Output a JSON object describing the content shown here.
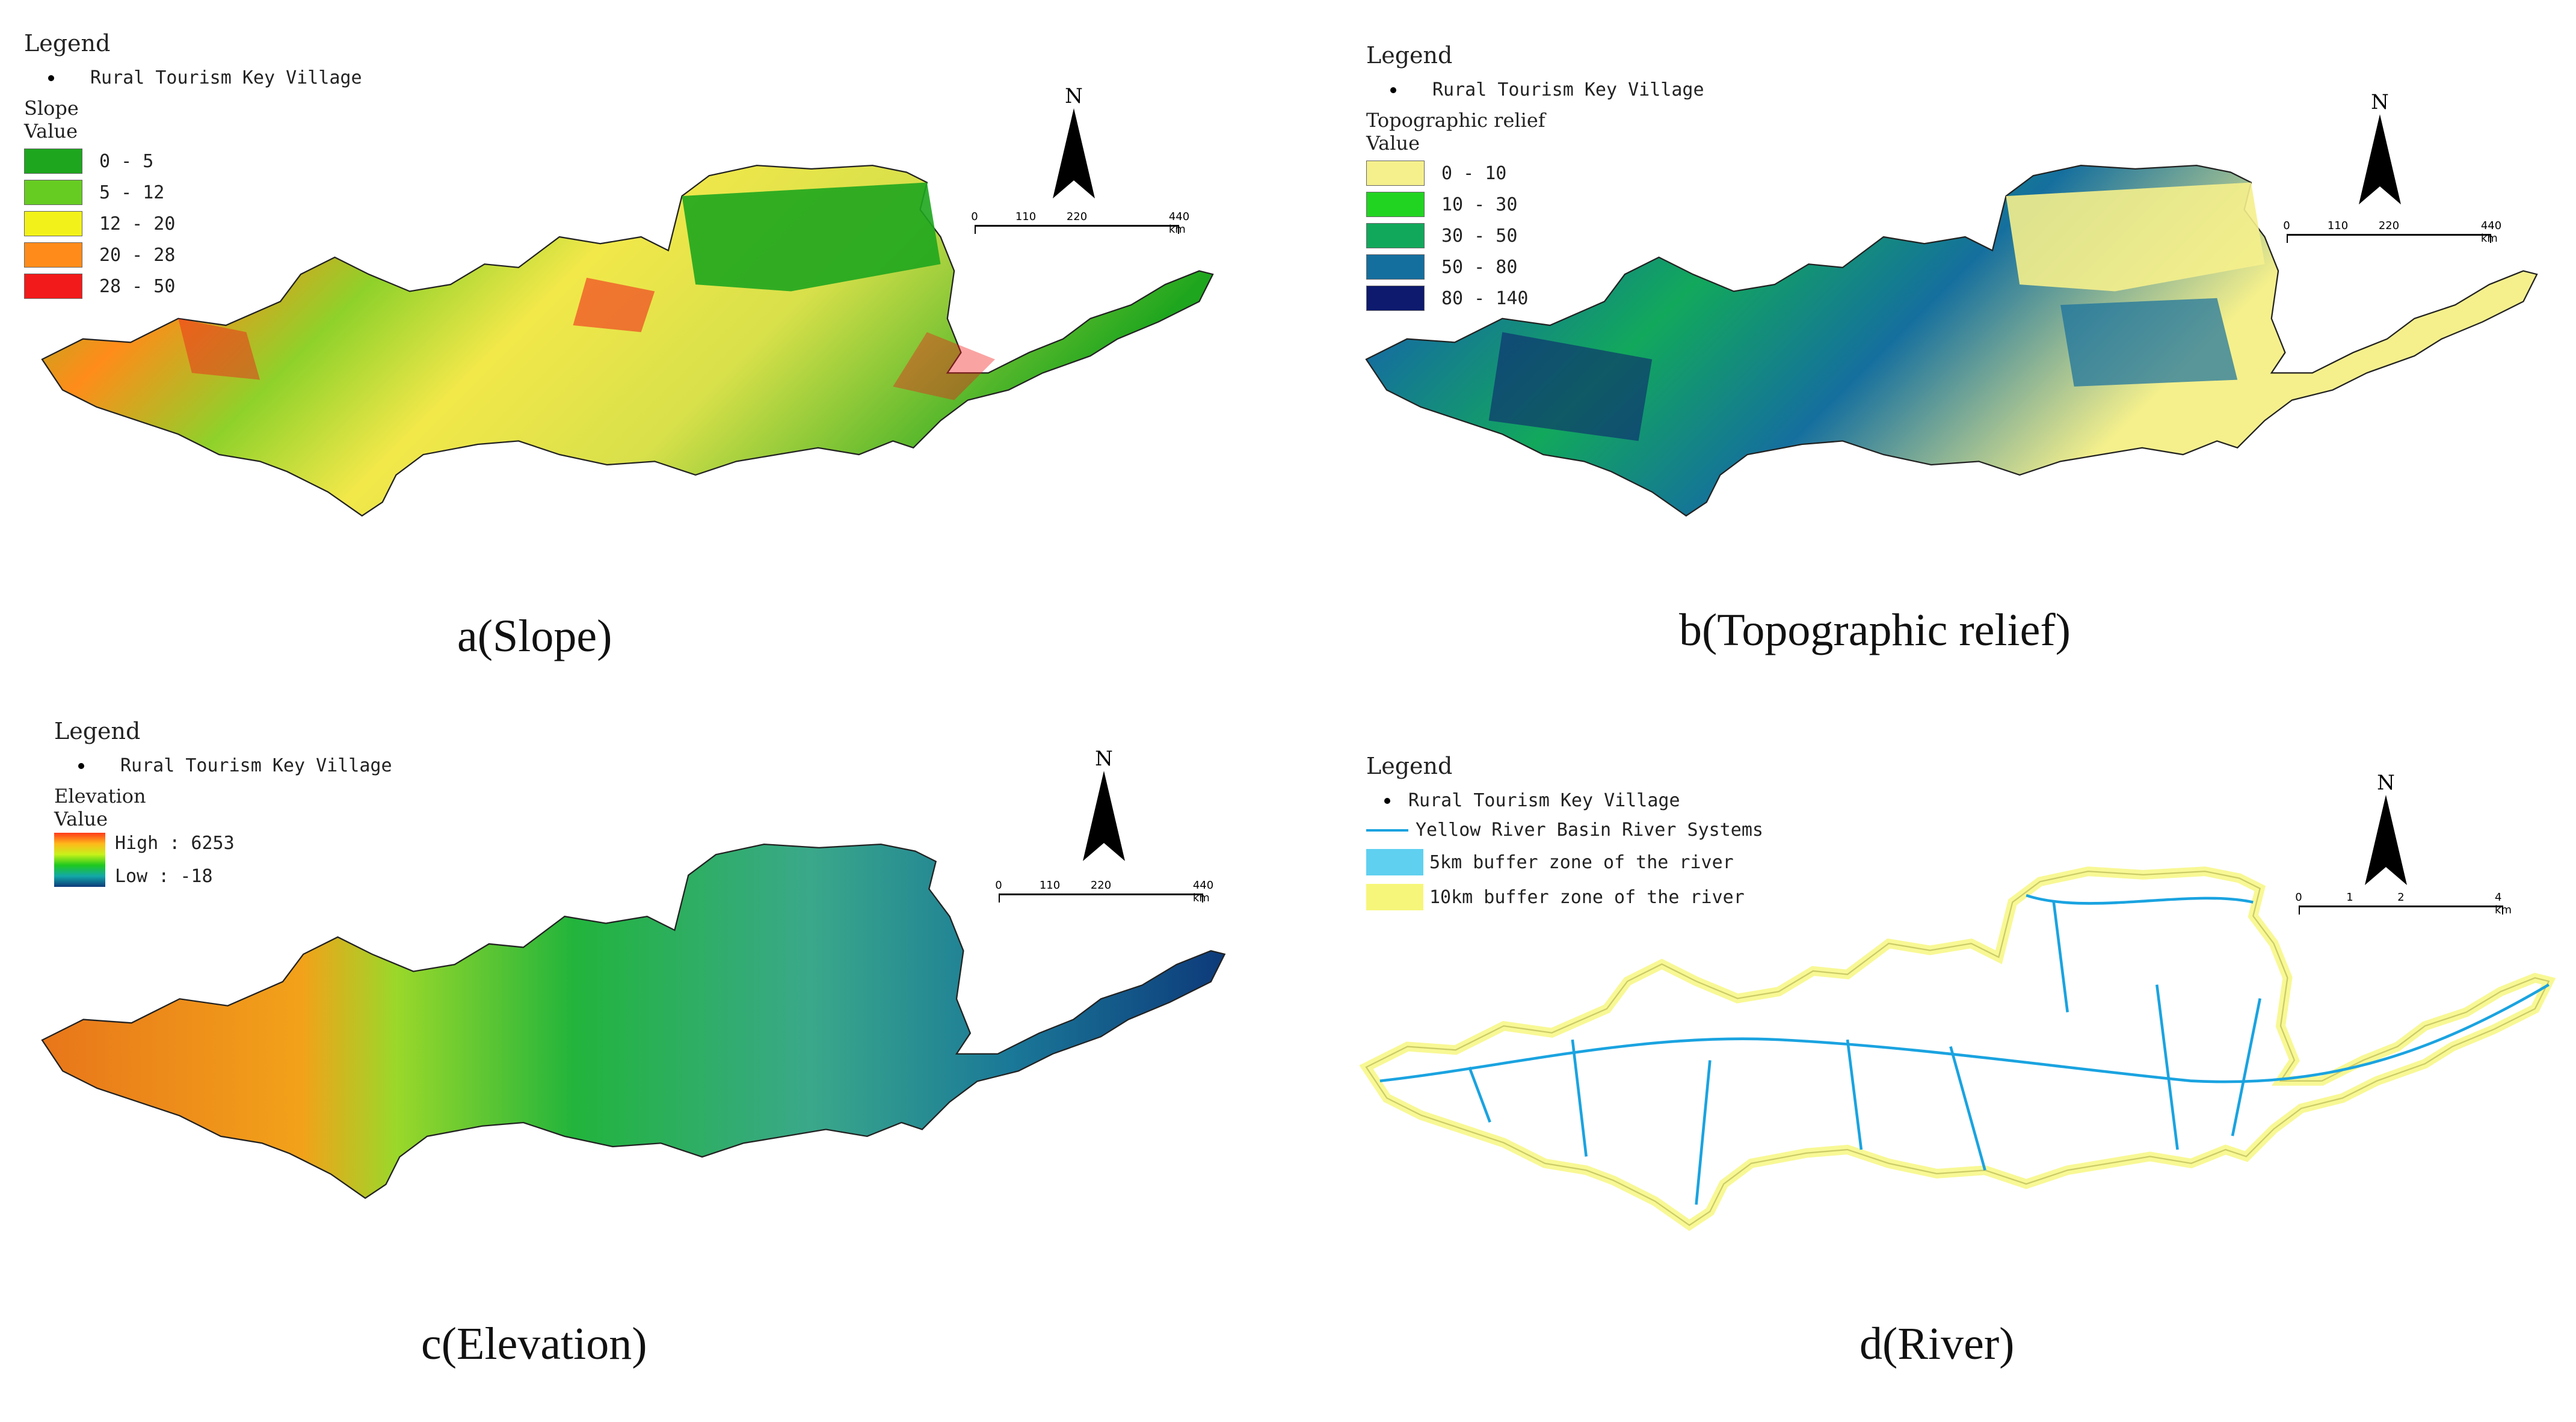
{
  "panels": {
    "a": {
      "caption": "a(Slope)",
      "legend_title": "Legend",
      "point_label": "Rural Tourism Key Village",
      "variable": "Slope",
      "value_label": "Value",
      "classes": [
        {
          "label": "0 - 5",
          "color": "#1ea61e"
        },
        {
          "label": "5 - 12",
          "color": "#66cc22"
        },
        {
          "label": "12 - 20",
          "color": "#f2f21a"
        },
        {
          "label": "20 - 28",
          "color": "#ff8c1a"
        },
        {
          "label": "28 - 50",
          "color": "#f21a1a"
        }
      ],
      "scale_labels": [
        "0",
        "110",
        "220",
        "440 km"
      ]
    },
    "b": {
      "caption": "b(Topographic relief)",
      "legend_title": "Legend",
      "point_label": "Rural Tourism Key Village",
      "variable": "Topographic relief",
      "value_label": "Value",
      "classes": [
        {
          "label": "0 - 10",
          "color": "#f5f08c"
        },
        {
          "label": "10 - 30",
          "color": "#22d422"
        },
        {
          "label": "30 - 50",
          "color": "#12a85c"
        },
        {
          "label": "50 - 80",
          "color": "#156f9e"
        },
        {
          "label": "80 - 140",
          "color": "#0d1a6e"
        }
      ],
      "scale_labels": [
        "0",
        "110",
        "220",
        "440 km"
      ]
    },
    "c": {
      "caption": "c(Elevation)",
      "legend_title": "Legend",
      "point_label": "Rural Tourism Key Village",
      "variable": "Elevation",
      "value_label": "Value",
      "high_label": "High : 6253",
      "low_label": "Low : -18",
      "scale_labels": [
        "0",
        "110",
        "220",
        "440 km"
      ]
    },
    "d": {
      "caption": "d(River)",
      "legend_title": "Legend",
      "point_label": "Rural Tourism Key Village",
      "river_label": "Yellow River Basin River Systems",
      "buffer5_label": "5km buffer zone of the river",
      "buffer10_label": "10km buffer zone of the river",
      "river_color": "#1aa3e0",
      "buffer5_color": "#5fd0f0",
      "buffer10_color": "#f6f67a",
      "scale_labels": [
        "0",
        "1",
        "2",
        "4 km"
      ]
    }
  },
  "north_label": "N"
}
